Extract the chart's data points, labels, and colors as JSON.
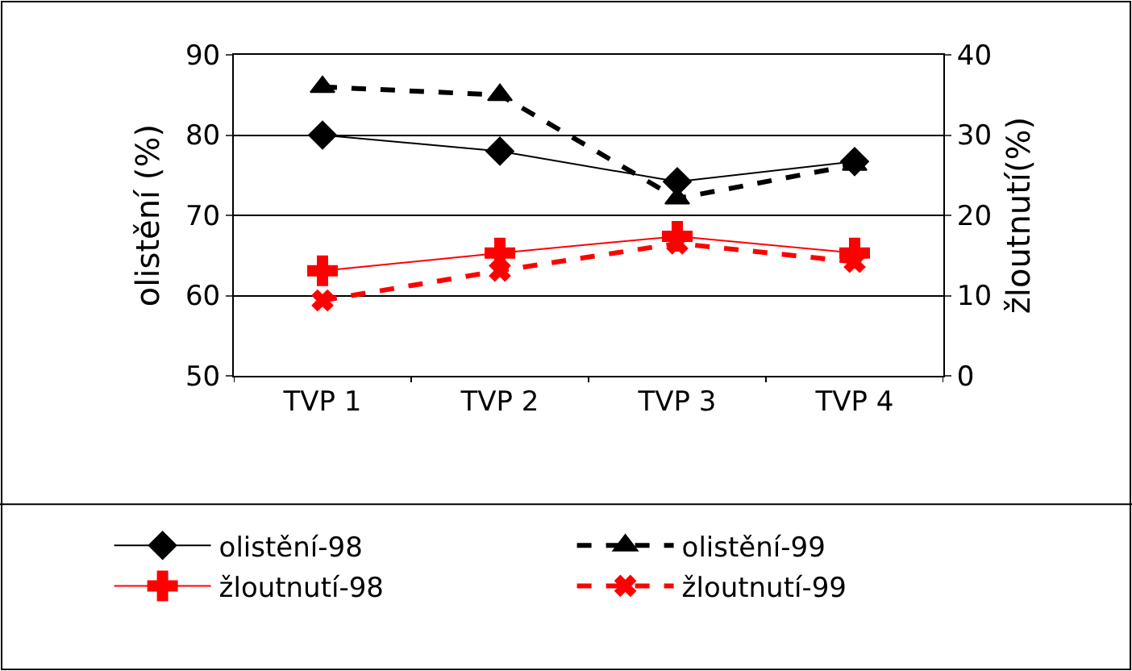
{
  "chart_data": {
    "type": "line",
    "categories": [
      "TVP 1",
      "TVP 2",
      "TVP 3",
      "TVP 4"
    ],
    "ylabel": "olistění (%)",
    "y2label": "žloutnutí(%)",
    "ylim": [
      50,
      90
    ],
    "yticks": [
      50,
      60,
      70,
      80,
      90
    ],
    "y2lim": [
      0,
      40
    ],
    "y2ticks": [
      0,
      10,
      20,
      30,
      40
    ],
    "grid": "y",
    "legend": "bottom",
    "series": [
      {
        "name": "olistění-98",
        "color": "#000000",
        "marker": "diamond",
        "line_style": "solid",
        "values": [
          80,
          78,
          74.2,
          76.7
        ]
      },
      {
        "name": "olistění-99",
        "color": "#000000",
        "marker": "triangle",
        "line_style": "dashed",
        "values": [
          86,
          85,
          72.1,
          76.3
        ]
      },
      {
        "name": "žloutnutí-98",
        "color": "#ff0000",
        "marker": "cross",
        "line_style": "solid",
        "axis": "y2",
        "values": [
          13.1,
          15.3,
          17.4,
          15.3
        ]
      },
      {
        "name": "žloutnutí-99",
        "color": "#ff0000",
        "marker": "cross",
        "line_style": "dashed",
        "axis": "y2",
        "values": [
          9.4,
          13.1,
          16.5,
          14.2
        ]
      }
    ]
  }
}
